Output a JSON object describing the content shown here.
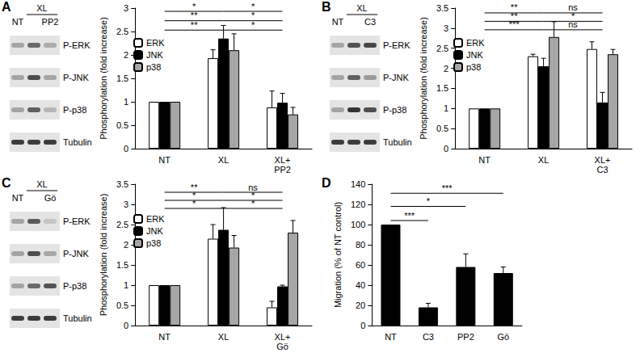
{
  "chart_data": [
    {
      "type": "bar",
      "title": "A",
      "y_label": "Phosphorylation (fold increase)",
      "categories": [
        "NT",
        "XL",
        "XL+\nPP2"
      ],
      "series": [
        {
          "name": "ERK",
          "color": "#ffffff",
          "values": [
            1,
            1.93,
            0.88
          ],
          "errors": [
            0,
            0.18,
            0.35
          ]
        },
        {
          "name": "JNK",
          "color": "#000000",
          "values": [
            1,
            2.35,
            0.98
          ],
          "errors": [
            0,
            0.28,
            0.2
          ]
        },
        {
          "name": "p38",
          "color": "#a6a6a6",
          "values": [
            1,
            2.1,
            0.73
          ],
          "errors": [
            0,
            0.35,
            0.15
          ]
        }
      ],
      "ylim": [
        0,
        3
      ],
      "yticks": [
        0,
        0.5,
        1,
        1.5,
        2,
        2.5,
        3
      ],
      "grid": false,
      "legend": "upper left",
      "annotations": [
        {
          "from": "NT",
          "to": "XL",
          "y": 2.93,
          "label": "*"
        },
        {
          "from": "NT",
          "to": "XL",
          "y": 2.73,
          "label": "**"
        },
        {
          "from": "NT",
          "to": "XL",
          "y": 2.53,
          "label": "**"
        },
        {
          "from": "XL",
          "to": "XL+\nPP2",
          "y": 2.93,
          "label": "*"
        },
        {
          "from": "XL",
          "to": "XL+\nPP2",
          "y": 2.73,
          "label": "*"
        },
        {
          "from": "XL",
          "to": "XL+\nPP2",
          "y": 2.53,
          "label": "*"
        }
      ]
    },
    {
      "type": "bar",
      "title": "B",
      "y_label": "Phosphorylation (fold increase)",
      "categories": [
        "NT",
        "XL",
        "XL+\nC3"
      ],
      "series": [
        {
          "name": "ERK",
          "color": "#ffffff",
          "values": [
            1,
            2.3,
            2.48
          ],
          "errors": [
            0,
            0.05,
            0.18
          ]
        },
        {
          "name": "JNK",
          "color": "#000000",
          "values": [
            1,
            2.05,
            1.15
          ],
          "errors": [
            0,
            0.2,
            0.25
          ]
        },
        {
          "name": "p38",
          "color": "#a6a6a6",
          "values": [
            1,
            2.78,
            2.35
          ],
          "errors": [
            0,
            0.38,
            0.12
          ]
        }
      ],
      "ylim": [
        0,
        3.5
      ],
      "yticks": [
        0,
        0.5,
        1,
        1.5,
        2,
        2.5,
        3,
        3.5
      ],
      "grid": false,
      "legend": "upper left",
      "annotations": [
        {
          "from": "NT",
          "to": "XL",
          "y": 3.38,
          "label": "**"
        },
        {
          "from": "NT",
          "to": "XL",
          "y": 3.17,
          "label": "**"
        },
        {
          "from": "NT",
          "to": "XL",
          "y": 2.96,
          "label": "***"
        },
        {
          "from": "XL",
          "to": "XL+\nC3",
          "y": 3.38,
          "label": "ns"
        },
        {
          "from": "XL",
          "to": "XL+\nC3",
          "y": 3.17,
          "label": "*"
        },
        {
          "from": "XL",
          "to": "XL+\nC3",
          "y": 2.96,
          "label": "ns"
        }
      ]
    },
    {
      "type": "bar",
      "title": "C",
      "y_label": "Phosphorylation (fold increase)",
      "categories": [
        "NT",
        "XL",
        "XL+\nGö"
      ],
      "series": [
        {
          "name": "ERK",
          "color": "#ffffff",
          "values": [
            1,
            2.15,
            0.45
          ],
          "errors": [
            0,
            0.35,
            0.15
          ]
        },
        {
          "name": "JNK",
          "color": "#000000",
          "values": [
            1,
            2.37,
            0.97
          ],
          "errors": [
            0,
            0.55,
            0.03
          ]
        },
        {
          "name": "p38",
          "color": "#a6a6a6",
          "values": [
            1,
            1.93,
            2.3
          ],
          "errors": [
            0,
            0.3,
            0.3
          ]
        }
      ],
      "ylim": [
        0,
        3.5
      ],
      "yticks": [
        0,
        0.5,
        1,
        1.5,
        2,
        2.5,
        3,
        3.5
      ],
      "grid": false,
      "legend": "upper left",
      "annotations": [
        {
          "from": "NT",
          "to": "XL",
          "y": 3.3,
          "label": "**"
        },
        {
          "from": "NT",
          "to": "XL",
          "y": 3.1,
          "label": "*"
        },
        {
          "from": "NT",
          "to": "XL",
          "y": 2.9,
          "label": "*"
        },
        {
          "from": "XL",
          "to": "XL+\nGö",
          "y": 3.3,
          "label": "ns"
        },
        {
          "from": "XL",
          "to": "XL+\nGö",
          "y": 3.1,
          "label": "*"
        },
        {
          "from": "XL",
          "to": "XL+\nGö",
          "y": 2.9,
          "label": "*"
        }
      ]
    },
    {
      "type": "bar",
      "title": "D",
      "y_label": "Migration (% of NT control)",
      "categories": [
        "NT",
        "C3",
        "PP2",
        "Gö"
      ],
      "series": [
        {
          "name": "Migration",
          "color": "#000000",
          "values": [
            100,
            18,
            58,
            52
          ],
          "errors": [
            0,
            4,
            13,
            6
          ]
        }
      ],
      "ylim": [
        0,
        140
      ],
      "yticks": [
        0,
        20,
        40,
        60,
        80,
        100,
        120,
        140
      ],
      "grid": false,
      "annotations": [
        {
          "from": "NT",
          "to": "C3",
          "y": 104,
          "label": "***"
        },
        {
          "from": "NT",
          "to": "PP2",
          "y": 118,
          "label": "*"
        },
        {
          "from": "NT",
          "to": "Gö",
          "y": 131,
          "label": "***"
        }
      ]
    }
  ],
  "blots": [
    {
      "panel": "A",
      "group_label": "XL",
      "lane_labels": [
        "NT",
        null,
        "PP2"
      ],
      "rows": [
        "P-ERK",
        "P-JNK",
        "P-p38",
        "Tubulin"
      ]
    },
    {
      "panel": "B",
      "group_label": "XL",
      "lane_labels": [
        "NT",
        null,
        "C3"
      ],
      "rows": [
        "P-ERK",
        "P-JNK",
        "P-p38",
        "Tubulin"
      ]
    },
    {
      "panel": "C",
      "group_label": "XL",
      "lane_labels": [
        "NT",
        null,
        "Gö"
      ],
      "rows": [
        "P-ERK",
        "P-JNK",
        "P-p38",
        "Tubulin"
      ]
    }
  ]
}
